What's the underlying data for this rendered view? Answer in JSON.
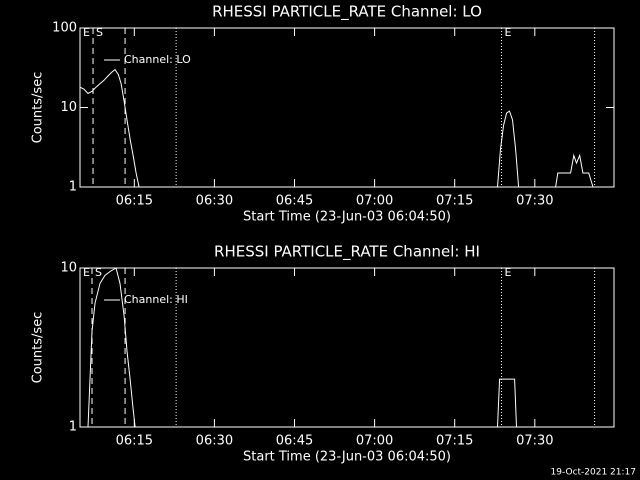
{
  "chart_data": [
    {
      "type": "line",
      "title": "RHESSI PARTICLE_RATE Channel: LO",
      "x_label": "Start Time (23-Jun-03 06:04:50)",
      "y_label": "Counts/sec",
      "log_y": true,
      "xlim": [
        4.83,
        104.83
      ],
      "ylim": [
        1,
        100
      ],
      "yticks": [
        1,
        10,
        100
      ],
      "xticks": [
        {
          "value": 15,
          "label": "06:15"
        },
        {
          "value": 30,
          "label": "06:30"
        },
        {
          "value": 45,
          "label": "06:45"
        },
        {
          "value": 60,
          "label": "07:00"
        },
        {
          "value": 75,
          "label": "07:15"
        },
        {
          "value": 90,
          "label": "07:30"
        }
      ],
      "vlines": [
        {
          "x": 7.27,
          "style": "dashed"
        },
        {
          "x": 13.27,
          "style": "dashed"
        },
        {
          "x": 22.83,
          "style": "dotted"
        },
        {
          "x": 83.77,
          "style": "dotted"
        },
        {
          "x": 101.2,
          "style": "dotted"
        }
      ],
      "annotations": [
        {
          "text": "E",
          "x": 4.83
        },
        {
          "text": "S",
          "x": 7.27
        },
        {
          "text": "E",
          "x": 83.77
        }
      ],
      "series": [
        {
          "name": "Channel: LO",
          "color": "#ffffff",
          "x": [
            4.83,
            5.58,
            6.33,
            7.08,
            7.83,
            8.58,
            9.33,
            10.08,
            10.83,
            11.39,
            12.0,
            12.52,
            13.08,
            13.64,
            14.21,
            14.77,
            15.33,
            15.9,
            50,
            83.02,
            83.58,
            84.15,
            84.71,
            85.27,
            85.83,
            86.4,
            86.96,
            90,
            93.9,
            94.3,
            94.8,
            95.8,
            96.7,
            97.3,
            97.8,
            98.4,
            99.0,
            100.1,
            100.9
          ],
          "values": [
            18,
            17,
            15,
            16,
            18,
            20,
            22,
            25,
            28,
            30,
            26,
            20,
            12,
            7,
            4,
            2.5,
            1.5,
            1,
            null,
            1,
            3,
            6,
            8.5,
            9,
            7,
            3,
            1,
            null,
            1,
            1.5,
            1.5,
            1.5,
            1.5,
            2.5,
            2,
            2.5,
            1.5,
            1.5,
            1
          ]
        }
      ]
    },
    {
      "type": "line",
      "title": "RHESSI PARTICLE_RATE Channel: HI",
      "x_label": "Start Time (23-Jun-03 06:04:50)",
      "y_label": "Counts/sec",
      "log_y": true,
      "xlim": [
        4.83,
        104.83
      ],
      "ylim": [
        1,
        10
      ],
      "yticks": [
        1,
        10
      ],
      "xticks": [
        {
          "value": 15,
          "label": "06:15"
        },
        {
          "value": 30,
          "label": "06:30"
        },
        {
          "value": 45,
          "label": "06:45"
        },
        {
          "value": 60,
          "label": "07:00"
        },
        {
          "value": 75,
          "label": "07:15"
        },
        {
          "value": 90,
          "label": "07:30"
        }
      ],
      "vlines": [
        {
          "x": 7.08,
          "style": "dashed"
        },
        {
          "x": 13.27,
          "style": "dashed"
        },
        {
          "x": 22.83,
          "style": "dotted"
        },
        {
          "x": 83.77,
          "style": "dotted"
        },
        {
          "x": 101.2,
          "style": "dotted"
        }
      ],
      "annotations": [
        {
          "text": "E",
          "x": 4.83
        },
        {
          "text": "S",
          "x": 7.08
        },
        {
          "text": "E",
          "x": 83.77
        }
      ],
      "series": [
        {
          "name": "Channel: HI",
          "color": "#ffffff",
          "x": [
            6.33,
            6.71,
            7.08,
            7.64,
            8.58,
            9.52,
            10.46,
            11.58,
            12.33,
            13.08,
            13.64,
            14.21,
            14.77,
            15.15,
            50,
            83.02,
            83.4,
            84.15,
            84.71,
            85.46,
            86.21,
            86.58
          ],
          "values": [
            1,
            2,
            4,
            6,
            8,
            9,
            9.5,
            10,
            8,
            5,
            3,
            2,
            1.3,
            1,
            null,
            1,
            2,
            2,
            2,
            2,
            2,
            1
          ]
        }
      ]
    }
  ],
  "footer": "19-Oct-2021 21:17"
}
